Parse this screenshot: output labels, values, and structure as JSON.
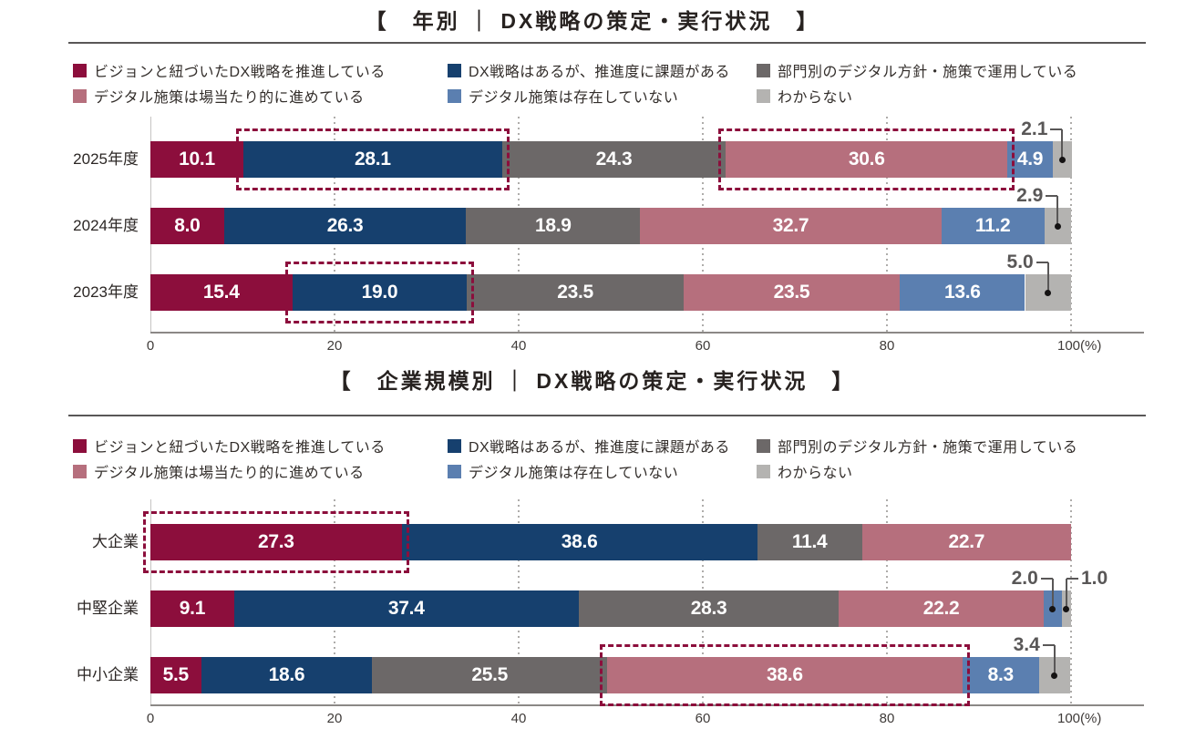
{
  "colors": {
    "background": "#ffffff",
    "title_text": "#272220",
    "legend_text": "#332e2b",
    "axis_text": "#3f3b39",
    "axis_line": "#8b8886",
    "grid_line": "#aeacaa",
    "rule_line": "#595757",
    "bar_value_text": "#ffffff",
    "callout_text": "#595757",
    "highlight_border": "#8c0e3c",
    "cat1_wine": "#8c0e3c",
    "cat2_navy": "#16406e",
    "cat3_gray": "#6c6868",
    "cat4_rose": "#b66f7d",
    "cat5_steel_blue": "#5b7fb0",
    "cat6_light_gray": "#b4b3b1"
  },
  "chart_data": [
    {
      "type": "bar",
      "stacked": true,
      "orientation": "horizontal",
      "title": "【　年別 ｜ DX戦略の策定・実行状況　】",
      "categories": [
        "2025年度",
        "2024年度",
        "2023年度"
      ],
      "series": [
        {
          "name": "ビジョンと紐づいたDX戦略を推進している",
          "color": "#8c0e3c",
          "values": [
            10.1,
            8.0,
            15.4
          ]
        },
        {
          "name": "DX戦略はあるが、推進度に課題がある",
          "color": "#16406e",
          "values": [
            28.1,
            26.3,
            19.0
          ]
        },
        {
          "name": "部門別のデジタル方針・施策で運用している",
          "color": "#6c6868",
          "values": [
            24.3,
            18.9,
            23.5
          ]
        },
        {
          "name": "デジタル施策は場当たり的に進めている",
          "color": "#b66f7d",
          "values": [
            30.6,
            32.7,
            23.5
          ]
        },
        {
          "name": "デジタル施策は存在していない",
          "color": "#5b7fb0",
          "values": [
            4.9,
            11.2,
            13.6
          ]
        },
        {
          "name": "わからない",
          "color": "#b4b3b1",
          "values": [
            2.1,
            2.9,
            5.0
          ]
        }
      ],
      "xlim": [
        0,
        100
      ],
      "xticks": [
        0,
        20,
        40,
        60,
        80,
        100
      ],
      "xunit": "(%)",
      "grid": true,
      "legend_position": "top",
      "highlights": [
        {
          "row": 0,
          "series": 1
        },
        {
          "row": 0,
          "series": 3
        },
        {
          "row": 2,
          "series": 1
        }
      ],
      "callouts": [
        {
          "row": 0,
          "series": 5,
          "side": "right"
        },
        {
          "row": 1,
          "series": 5,
          "side": "right"
        },
        {
          "row": 2,
          "series": 5,
          "side": "right"
        }
      ]
    },
    {
      "type": "bar",
      "stacked": true,
      "orientation": "horizontal",
      "title": "【　企業規模別 ｜ DX戦略の策定・実行状況　】",
      "categories": [
        "大企業",
        "中堅企業",
        "中小企業"
      ],
      "series": [
        {
          "name": "ビジョンと紐づいたDX戦略を推進している",
          "color": "#8c0e3c",
          "values": [
            27.3,
            9.1,
            5.5
          ]
        },
        {
          "name": "DX戦略はあるが、推進度に課題がある",
          "color": "#16406e",
          "values": [
            38.6,
            37.4,
            18.6
          ]
        },
        {
          "name": "部門別のデジタル方針・施策で運用している",
          "color": "#6c6868",
          "values": [
            11.4,
            28.3,
            25.5
          ]
        },
        {
          "name": "デジタル施策は場当たり的に進めている",
          "color": "#b66f7d",
          "values": [
            22.7,
            22.2,
            38.6
          ]
        },
        {
          "name": "デジタル施策は存在していない",
          "color": "#5b7fb0",
          "values": [
            0,
            2.0,
            8.3
          ]
        },
        {
          "name": "わからない",
          "color": "#b4b3b1",
          "values": [
            0,
            1.0,
            3.4
          ]
        }
      ],
      "xlim": [
        0,
        100
      ],
      "xticks": [
        0,
        20,
        40,
        60,
        80,
        100
      ],
      "xunit": "(%)",
      "grid": true,
      "legend_position": "top",
      "highlights": [
        {
          "row": 0,
          "series": 0
        },
        {
          "row": 2,
          "series": 3
        }
      ],
      "callouts": [
        {
          "row": 1,
          "series": 4,
          "side": "right"
        },
        {
          "row": 1,
          "series": 5,
          "side": "left"
        },
        {
          "row": 2,
          "series": 5,
          "side": "right"
        }
      ]
    }
  ]
}
